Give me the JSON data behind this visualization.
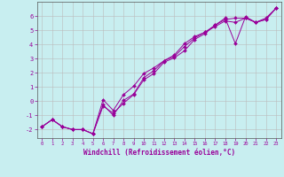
{
  "xlabel": "Windchill (Refroidissement éolien,°C)",
  "background_color": "#c8eef0",
  "line_color": "#990099",
  "grid_color": "#bbbbbb",
  "xlim": [
    -0.5,
    23.5
  ],
  "ylim": [
    -2.6,
    7.0
  ],
  "xticks": [
    0,
    1,
    2,
    3,
    4,
    5,
    6,
    7,
    8,
    9,
    10,
    11,
    12,
    13,
    14,
    15,
    16,
    17,
    18,
    19,
    20,
    21,
    22,
    23
  ],
  "yticks": [
    -2,
    -1,
    0,
    1,
    2,
    3,
    4,
    5,
    6
  ],
  "line1_x": [
    0,
    1,
    2,
    3,
    4,
    5,
    6,
    7,
    8,
    9,
    10,
    11,
    12,
    13,
    14,
    15,
    16,
    17,
    18,
    19,
    20,
    21,
    22,
    23
  ],
  "line1_y": [
    -1.8,
    -1.3,
    -1.8,
    -2.0,
    -2.0,
    -2.3,
    -0.35,
    -0.85,
    -0.15,
    0.45,
    1.5,
    1.95,
    2.75,
    3.05,
    3.55,
    4.35,
    4.75,
    5.35,
    5.85,
    4.05,
    5.95,
    5.55,
    5.75,
    6.55
  ],
  "line2_x": [
    0,
    1,
    2,
    3,
    4,
    5,
    6,
    7,
    8,
    9,
    10,
    11,
    12,
    13,
    14,
    15,
    16,
    17,
    18,
    19,
    20,
    21,
    22,
    23
  ],
  "line2_y": [
    -1.8,
    -1.3,
    -1.8,
    -2.0,
    -2.0,
    -2.3,
    0.1,
    -0.65,
    0.45,
    1.05,
    1.95,
    2.35,
    2.85,
    3.25,
    4.05,
    4.55,
    4.85,
    5.25,
    5.65,
    5.55,
    5.85,
    5.55,
    5.85,
    6.55
  ],
  "line3_x": [
    0,
    1,
    2,
    3,
    4,
    5,
    6,
    7,
    8,
    9,
    10,
    11,
    12,
    13,
    14,
    15,
    16,
    17,
    18,
    19,
    20,
    21,
    22,
    23
  ],
  "line3_y": [
    -1.8,
    -1.3,
    -1.8,
    -2.0,
    -2.0,
    -2.3,
    -0.25,
    -1.0,
    0.05,
    0.5,
    1.65,
    2.15,
    2.85,
    3.15,
    3.85,
    4.45,
    4.85,
    5.35,
    5.75,
    5.85,
    5.85,
    5.55,
    5.75,
    6.55
  ]
}
